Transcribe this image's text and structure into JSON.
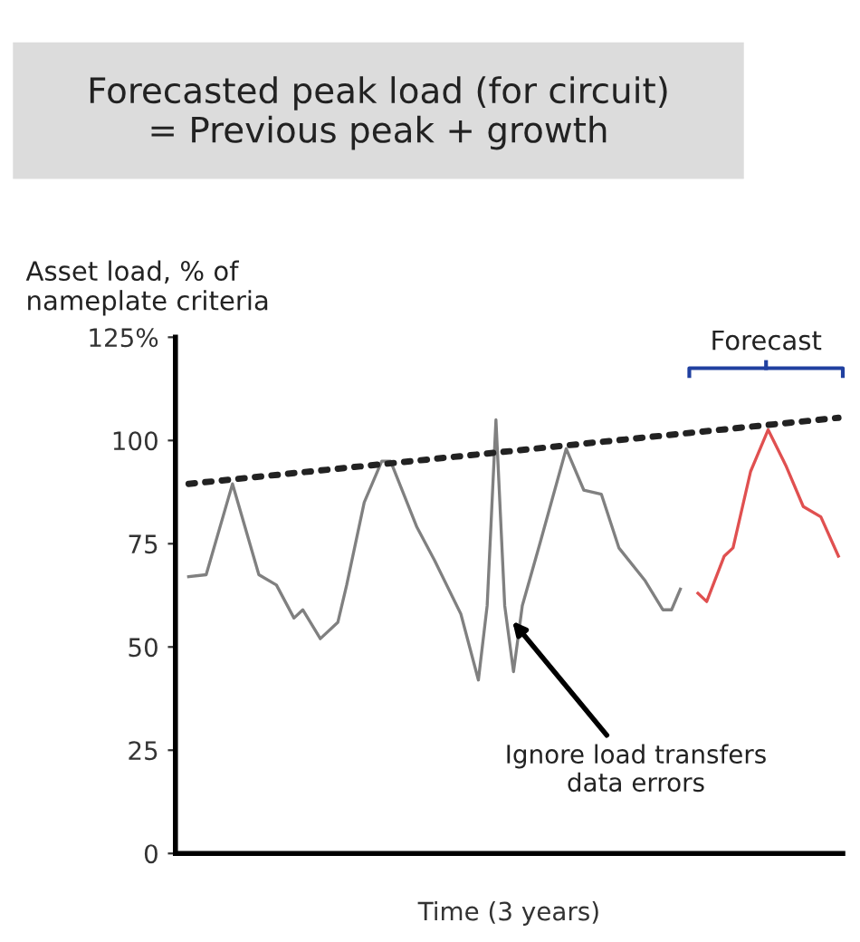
{
  "chart_data": {
    "type": "line",
    "title": "Forecasted peak load (for circuit)\n= Previous peak + growth",
    "ylabel": "Asset load, % of\nnameplate criteria",
    "xlabel": "Time (3 years)",
    "categories": [
      null,
      null,
      null,
      null,
      null,
      null,
      null,
      null,
      null,
      null,
      null,
      null,
      null,
      null,
      null,
      null,
      null,
      null,
      null,
      null,
      null,
      null,
      null,
      null,
      null,
      null,
      null,
      null,
      null,
      null,
      null,
      null,
      null,
      null,
      null,
      null,
      null,
      null,
      null,
      null,
      null,
      null,
      null,
      null,
      null,
      null,
      null,
      null,
      null,
      null,
      null,
      null,
      null,
      null,
      null,
      null,
      null,
      null,
      null,
      null,
      null,
      null,
      null,
      null,
      null,
      null,
      null,
      null,
      null,
      null,
      null,
      null,
      null,
      null,
      null,
      null
    ],
    "ylim": [
      0,
      125
    ],
    "yticks": [
      0,
      25,
      50,
      75,
      100,
      {
        "value": 125,
        "label": "125%"
      }
    ],
    "series": [
      {
        "color": "#808080",
        "values": [
          null,
          67,
          null,
          67.5,
          null,
          null,
          89.5,
          null,
          null,
          67.5,
          null,
          65,
          null,
          57,
          59,
          null,
          52,
          null,
          56,
          65,
          null,
          85,
          null,
          95,
          95,
          null,
          null,
          79,
          null,
          71,
          null,
          null,
          58,
          null,
          42,
          60,
          105,
          60,
          44,
          60,
          null,
          75,
          null,
          null,
          98,
          null,
          88,
          null,
          87,
          null,
          74,
          null,
          null,
          66,
          null,
          59,
          59,
          64,
          null,
          null,
          null,
          null,
          null,
          null,
          null,
          null,
          null,
          null,
          null,
          null,
          null,
          null,
          null,
          null,
          null,
          null
        ]
      },
      {
        "color": "#e05050",
        "values": [
          null,
          null,
          null,
          null,
          null,
          null,
          null,
          null,
          null,
          null,
          null,
          null,
          null,
          null,
          null,
          null,
          null,
          null,
          null,
          null,
          null,
          null,
          null,
          null,
          null,
          null,
          null,
          null,
          null,
          null,
          null,
          null,
          null,
          null,
          null,
          null,
          null,
          null,
          null,
          null,
          null,
          null,
          null,
          null,
          null,
          null,
          null,
          null,
          null,
          null,
          null,
          null,
          null,
          null,
          null,
          null,
          null,
          null,
          null,
          63,
          61,
          null,
          72,
          74,
          null,
          92.5,
          null,
          102.6,
          null,
          94,
          null,
          84,
          null,
          81.5,
          null,
          72
        ]
      },
      {
        "color": "#222222",
        "line_style": "dotted",
        "values": [
          null,
          89.5,
          null,
          null,
          null,
          null,
          null,
          null,
          null,
          null,
          null,
          null,
          null,
          null,
          null,
          null,
          null,
          null,
          null,
          null,
          null,
          null,
          null,
          null,
          null,
          null,
          null,
          null,
          null,
          null,
          null,
          null,
          null,
          null,
          null,
          null,
          null,
          null,
          null,
          null,
          null,
          null,
          null,
          null,
          null,
          null,
          null,
          null,
          null,
          null,
          null,
          null,
          null,
          null,
          null,
          null,
          null,
          null,
          null,
          null,
          null,
          null,
          null,
          null,
          null,
          null,
          null,
          null,
          null,
          null,
          null,
          null,
          null,
          null,
          null,
          105.5
        ]
      }
    ],
    "annotations": [
      "Forecast",
      "Ignore load transfers\ndata errors"
    ]
  }
}
